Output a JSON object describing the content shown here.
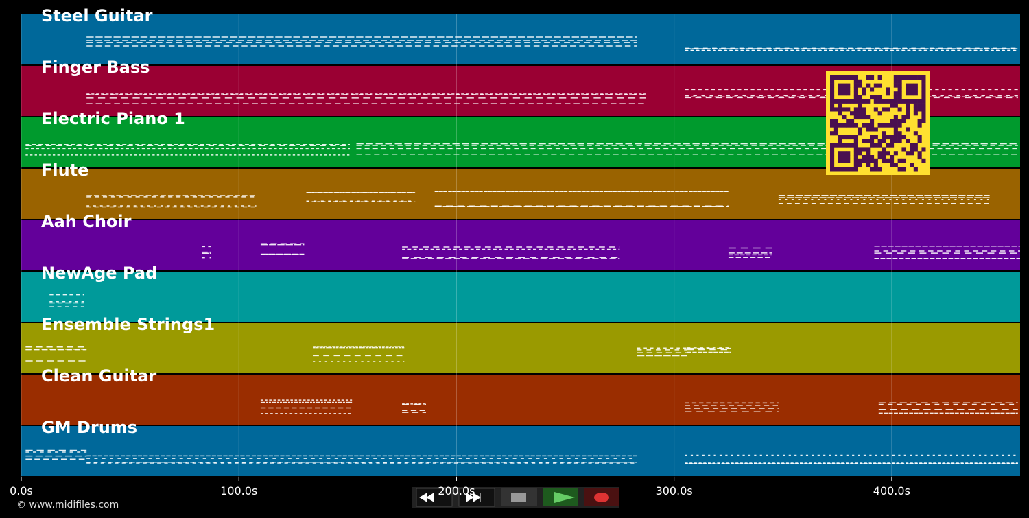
{
  "axis": {
    "xlim": [
      0,
      459
    ],
    "ticks": [
      {
        "value": 0,
        "label": "0.0s"
      },
      {
        "value": 100,
        "label": "100.0s"
      },
      {
        "value": 200,
        "label": "200.0s"
      },
      {
        "value": 300,
        "label": "300.0s"
      },
      {
        "value": 400,
        "label": "400.0s"
      }
    ]
  },
  "tracks": [
    {
      "name": "Steel Guitar",
      "color": "#00689a",
      "segments": [
        [
          30,
          283
        ],
        [
          305,
          458
        ]
      ]
    },
    {
      "name": "Finger Bass",
      "color": "#9a0033",
      "segments": [
        [
          30,
          287
        ],
        [
          305,
          458
        ]
      ]
    },
    {
      "name": "Electric Piano 1",
      "color": "#009a2d",
      "segments": [
        [
          2,
          151
        ],
        [
          154,
          458
        ]
      ]
    },
    {
      "name": "Flute",
      "color": "#9a6300",
      "segments": [
        [
          30,
          108
        ],
        [
          131,
          181
        ],
        [
          190,
          325
        ],
        [
          348,
          445
        ]
      ]
    },
    {
      "name": "Aah Choir",
      "color": "#63009a",
      "segments": [
        [
          83,
          87
        ],
        [
          110,
          130
        ],
        [
          175,
          275
        ],
        [
          325,
          345
        ],
        [
          392,
          459
        ]
      ]
    },
    {
      "name": "NewAge Pad",
      "color": "#009a9a",
      "segments": [
        [
          13,
          29
        ]
      ]
    },
    {
      "name": "Ensemble Strings1",
      "color": "#9a9a00",
      "segments": [
        [
          2,
          30
        ],
        [
          134,
          176
        ],
        [
          283,
          306
        ],
        [
          306,
          326
        ]
      ]
    },
    {
      "name": "Clean Guitar",
      "color": "#9a2d00",
      "segments": [
        [
          110,
          152
        ],
        [
          175,
          186
        ],
        [
          305,
          348
        ],
        [
          394,
          458
        ]
      ]
    },
    {
      "name": "GM Drums",
      "color": "#00689a",
      "segments": [
        [
          2,
          30
        ],
        [
          30,
          283
        ],
        [
          305,
          458
        ]
      ]
    }
  ],
  "footer": {
    "copyright": "© www.midifiles.com"
  }
}
